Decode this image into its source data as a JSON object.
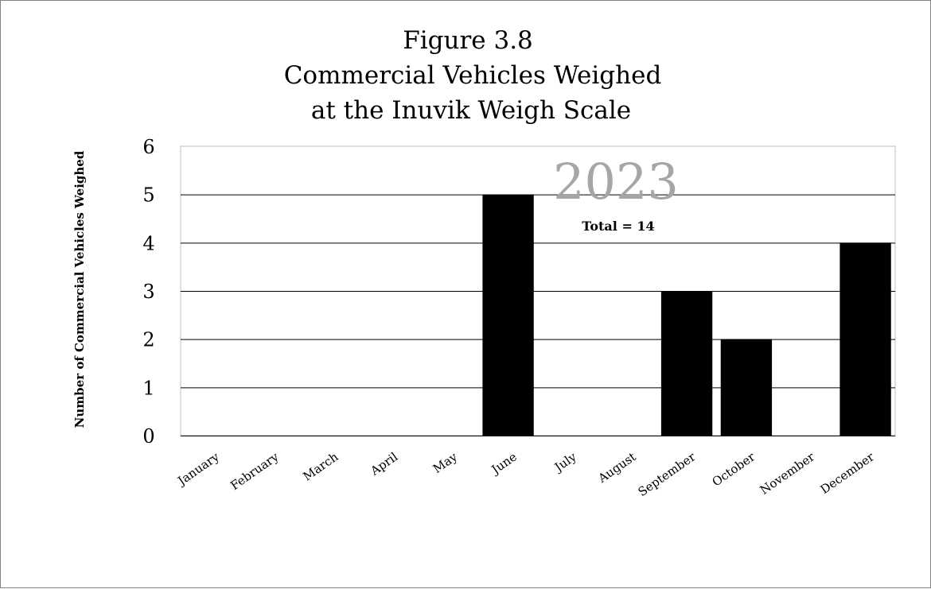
{
  "chart_data": {
    "type": "bar",
    "title_lines": [
      "Figure 3.8",
      "Commercial Vehicles Weighed",
      "at the Inuvik Weigh Scale"
    ],
    "annotation_year": "2023",
    "annotation_total": "Total = 14",
    "ylabel": "Number of Commercial Vehicles Weighed",
    "xlabel": "",
    "categories": [
      "January",
      "February",
      "March",
      "April",
      "May",
      "June",
      "July",
      "August",
      "September",
      "October",
      "November",
      "December"
    ],
    "values": [
      0,
      0,
      0,
      0,
      0,
      5,
      0,
      0,
      3,
      2,
      0,
      4
    ],
    "ylim": [
      0,
      6
    ],
    "yticks": [
      "0",
      "1",
      "2",
      "3",
      "4",
      "5",
      "6"
    ],
    "grid": true,
    "legend": "none",
    "bar_color": "#000000"
  }
}
